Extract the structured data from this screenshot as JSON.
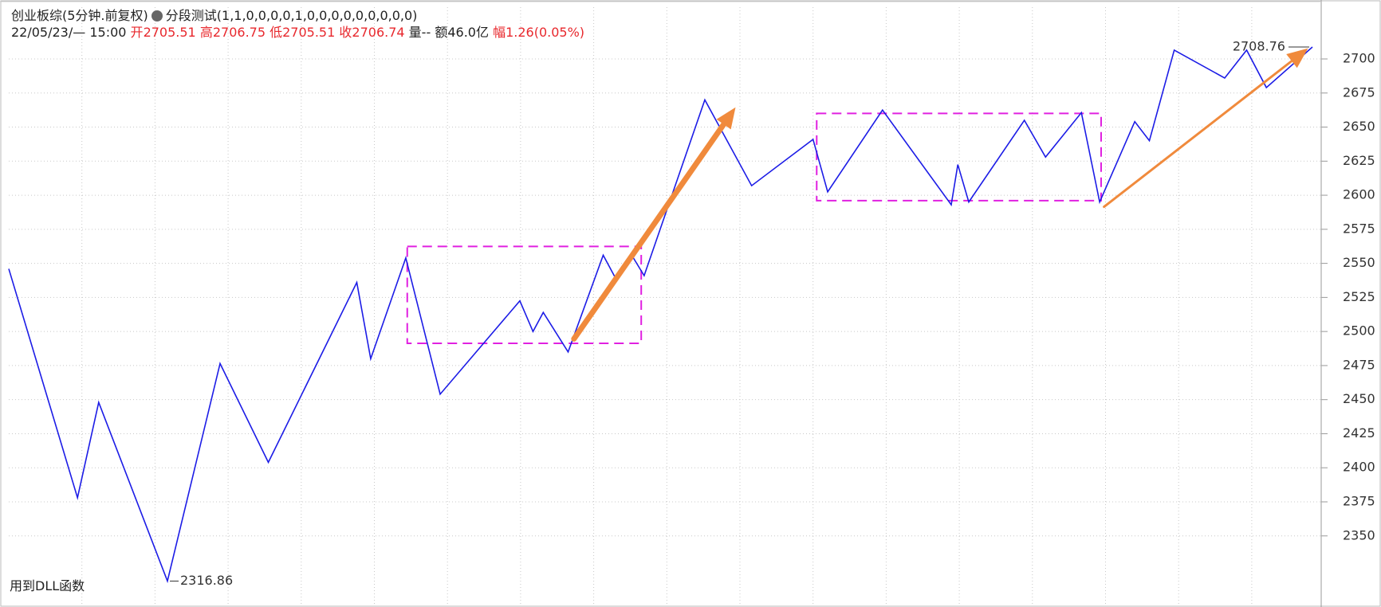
{
  "chart_data": {
    "type": "line",
    "title": "创业板综(5分钟.前复权)",
    "subtitle": "分段测试(1,1,0,0,0,0,1,0,0,0,0,0,0,0,0,0)",
    "info": {
      "datetime": "22/05/23/— 15:00",
      "open_label": "开",
      "open": 2705.51,
      "high_label": "高",
      "high": 2706.75,
      "low_label": "低",
      "low": 2705.51,
      "close_label": "收",
      "close": 2706.74,
      "volume": "量--",
      "amount": "额46.0亿",
      "change_label": "幅",
      "change": "1.26(0.05%)"
    },
    "note": "用到DLL函数",
    "series": [
      {
        "color": "#1c1ce6",
        "x": [
          0,
          0.94,
          1.23,
          2.17,
          2.89,
          3.55,
          4.76,
          4.95,
          5.43,
          5.9,
          6.99,
          7.17,
          7.31,
          7.65,
          8.13,
          8.31,
          8.52,
          8.69,
          9.52,
          10.16,
          11.0,
          11.2,
          11.95,
          12.89,
          12.98,
          13.13,
          13.89,
          14.18,
          14.67,
          14.92,
          15.4,
          15.6,
          15.94,
          16.63,
          16.93,
          17.2,
          17.83
        ],
        "values": [
          2546,
          2378,
          2448,
          2316.86,
          2476.5,
          2404,
          2536,
          2480,
          2554,
          2454,
          2522.5,
          2500,
          2514,
          2485,
          2556,
          2538,
          2556,
          2541,
          2670,
          2607,
          2641,
          2602.5,
          2662.5,
          2593,
          2622.5,
          2595,
          2655,
          2628,
          2660.6,
          2595,
          2654,
          2640,
          2706.5,
          2686,
          2706.5,
          2679,
          2708.76
        ]
      }
    ],
    "boxes": [
      {
        "color": "#e020e0",
        "xlim": [
          5.45,
          8.65
        ],
        "ylim": [
          2491.3,
          2562.4
        ]
      },
      {
        "color": "#e020e0",
        "xlim": [
          11.05,
          14.94
        ],
        "ylim": [
          2596,
          2660
        ]
      }
    ],
    "arrows": [
      {
        "color": "#f08a3c",
        "x": [
          7.73,
          9.94
        ],
        "y": [
          2494.6,
          2664.5
        ]
      },
      {
        "color": "#f08a3c",
        "x": [
          14.98,
          17.77
        ],
        "y": [
          2591.5,
          2707.8
        ]
      }
    ],
    "annotations": [
      {
        "text": "2316.86",
        "x": 2.17,
        "y": 2316.86
      },
      {
        "text": "2708.76",
        "x": 17.83,
        "y": 2708.76
      }
    ],
    "xlim": [
      0,
      17.95
    ],
    "ylim": [
      2299,
      2738
    ],
    "yticks": [
      2350,
      2375,
      2400,
      2425,
      2450,
      2475,
      2500,
      2525,
      2550,
      2575,
      2600,
      2625,
      2650,
      2675,
      2700
    ],
    "grid": true
  }
}
